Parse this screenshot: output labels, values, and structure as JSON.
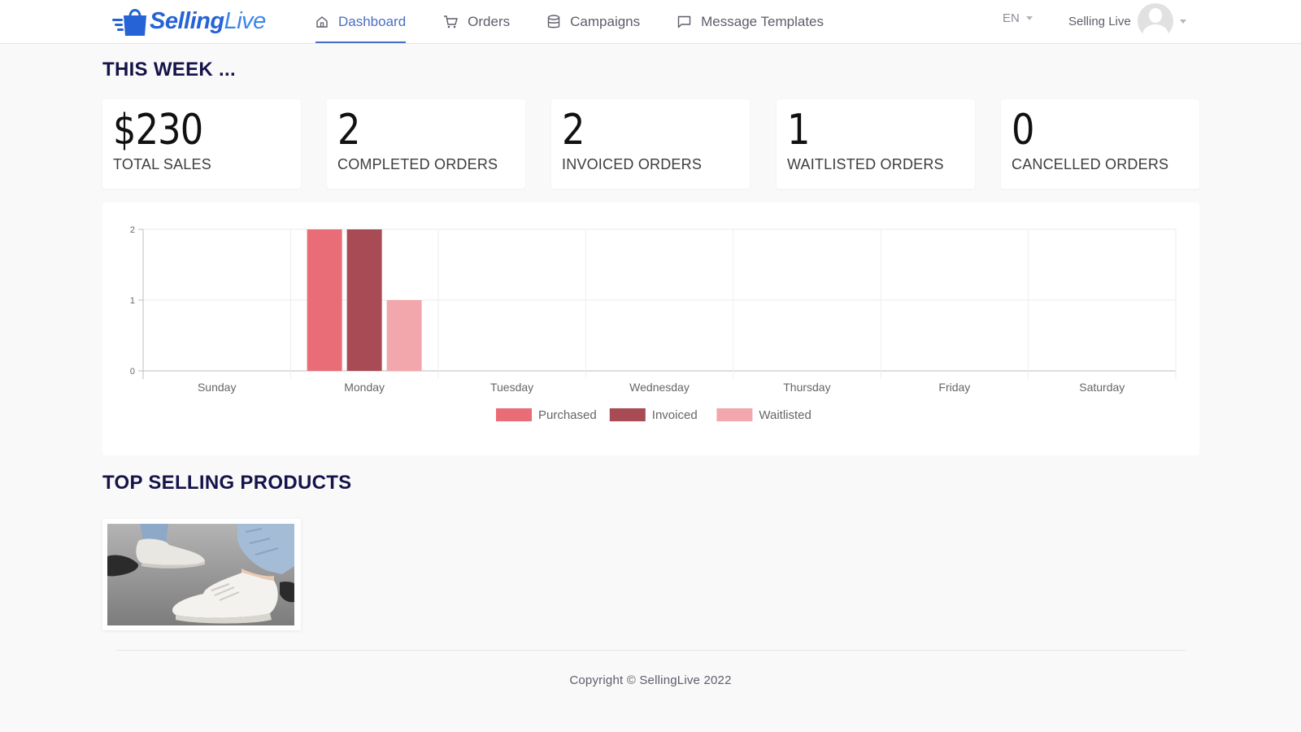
{
  "nav": {
    "logo_text_bold": "Selling",
    "logo_text_light": "Live",
    "items": [
      {
        "label": "Dashboard",
        "icon": "home-icon",
        "active": true
      },
      {
        "label": "Orders",
        "icon": "cart-icon",
        "active": false
      },
      {
        "label": "Campaigns",
        "icon": "database-icon",
        "active": false
      },
      {
        "label": "Message Templates",
        "icon": "message-icon",
        "active": false
      }
    ],
    "language": "EN",
    "user_name": "Selling Live"
  },
  "this_week": {
    "title": "THIS WEEK ...",
    "stats": [
      {
        "value": "$230",
        "label": "TOTAL SALES"
      },
      {
        "value": "2",
        "label": "COMPLETED ORDERS"
      },
      {
        "value": "2",
        "label": "INVOICED ORDERS"
      },
      {
        "value": "1",
        "label": "WAITLISTED ORDERS"
      },
      {
        "value": "0",
        "label": "CANCELLED ORDERS"
      }
    ]
  },
  "chart_data": {
    "type": "bar",
    "categories": [
      "Sunday",
      "Monday",
      "Tuesday",
      "Wednesday",
      "Thursday",
      "Friday",
      "Saturday"
    ],
    "series": [
      {
        "name": "Purchased",
        "color": "#e96d77",
        "values": [
          0,
          2,
          0,
          0,
          0,
          0,
          0
        ]
      },
      {
        "name": "Invoiced",
        "color": "#a84b55",
        "values": [
          0,
          2,
          0,
          0,
          0,
          0,
          0
        ]
      },
      {
        "name": "Waitlisted",
        "color": "#f2a7ac",
        "values": [
          0,
          1,
          0,
          0,
          0,
          0,
          0
        ]
      }
    ],
    "yticks": [
      "0",
      "1",
      "2"
    ],
    "ylim": [
      0,
      2
    ],
    "grid": true,
    "legend": "bottom-center"
  },
  "top_selling": {
    "title": "TOP SELLING PRODUCTS",
    "products": [
      {
        "image": "white-sneakers-photo"
      }
    ]
  },
  "footer": {
    "copyright": "Copyright © SellingLive 2022"
  },
  "colors": {
    "accent": "#4a6fc2",
    "heading": "#15134a",
    "logo": "#2563d6"
  }
}
